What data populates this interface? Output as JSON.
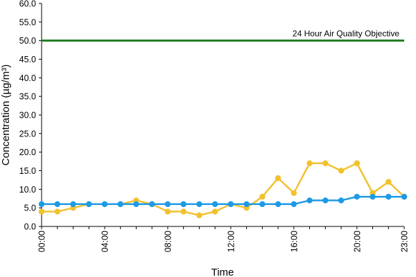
{
  "chart_data": {
    "type": "line",
    "title": "",
    "xlabel": "Time",
    "ylabel": "Concentration (µg/m³)",
    "ylim": [
      0,
      60
    ],
    "yticks": [
      "0.0",
      "5.0",
      "10.0",
      "15.0",
      "20.0",
      "25.0",
      "30.0",
      "35.0",
      "40.0",
      "45.0",
      "50.0",
      "55.0",
      "60.0"
    ],
    "xlim": [
      0,
      23
    ],
    "xtick_labels": [
      "00:00",
      "04:00",
      "08:00",
      "12:00",
      "16:00",
      "20:00",
      "23:00"
    ],
    "xtick_hours": [
      0,
      4,
      8,
      12,
      16,
      20,
      23
    ],
    "grid": false,
    "legend": "none",
    "x": [
      0,
      1,
      2,
      3,
      4,
      5,
      6,
      7,
      8,
      9,
      10,
      11,
      12,
      13,
      14,
      15,
      16,
      17,
      18,
      19,
      20,
      21,
      22,
      23
    ],
    "series": [
      {
        "color": "#f2c12e",
        "values": [
          4,
          4,
          5,
          6,
          6,
          6,
          7,
          6,
          4,
          4,
          3,
          4,
          6,
          5,
          8,
          13,
          9,
          17,
          17,
          15,
          17,
          9,
          12,
          8
        ]
      },
      {
        "color": "#1e9ae6",
        "values": [
          6,
          6,
          6,
          6,
          6,
          6,
          6,
          6,
          6,
          6,
          6,
          6,
          6,
          6,
          6,
          6,
          6,
          7,
          7,
          7,
          8,
          8,
          8,
          8
        ]
      }
    ],
    "reference_line": {
      "label": "24 Hour Air Quality Objective",
      "value": 50,
      "color": "#1f7a1f"
    }
  }
}
